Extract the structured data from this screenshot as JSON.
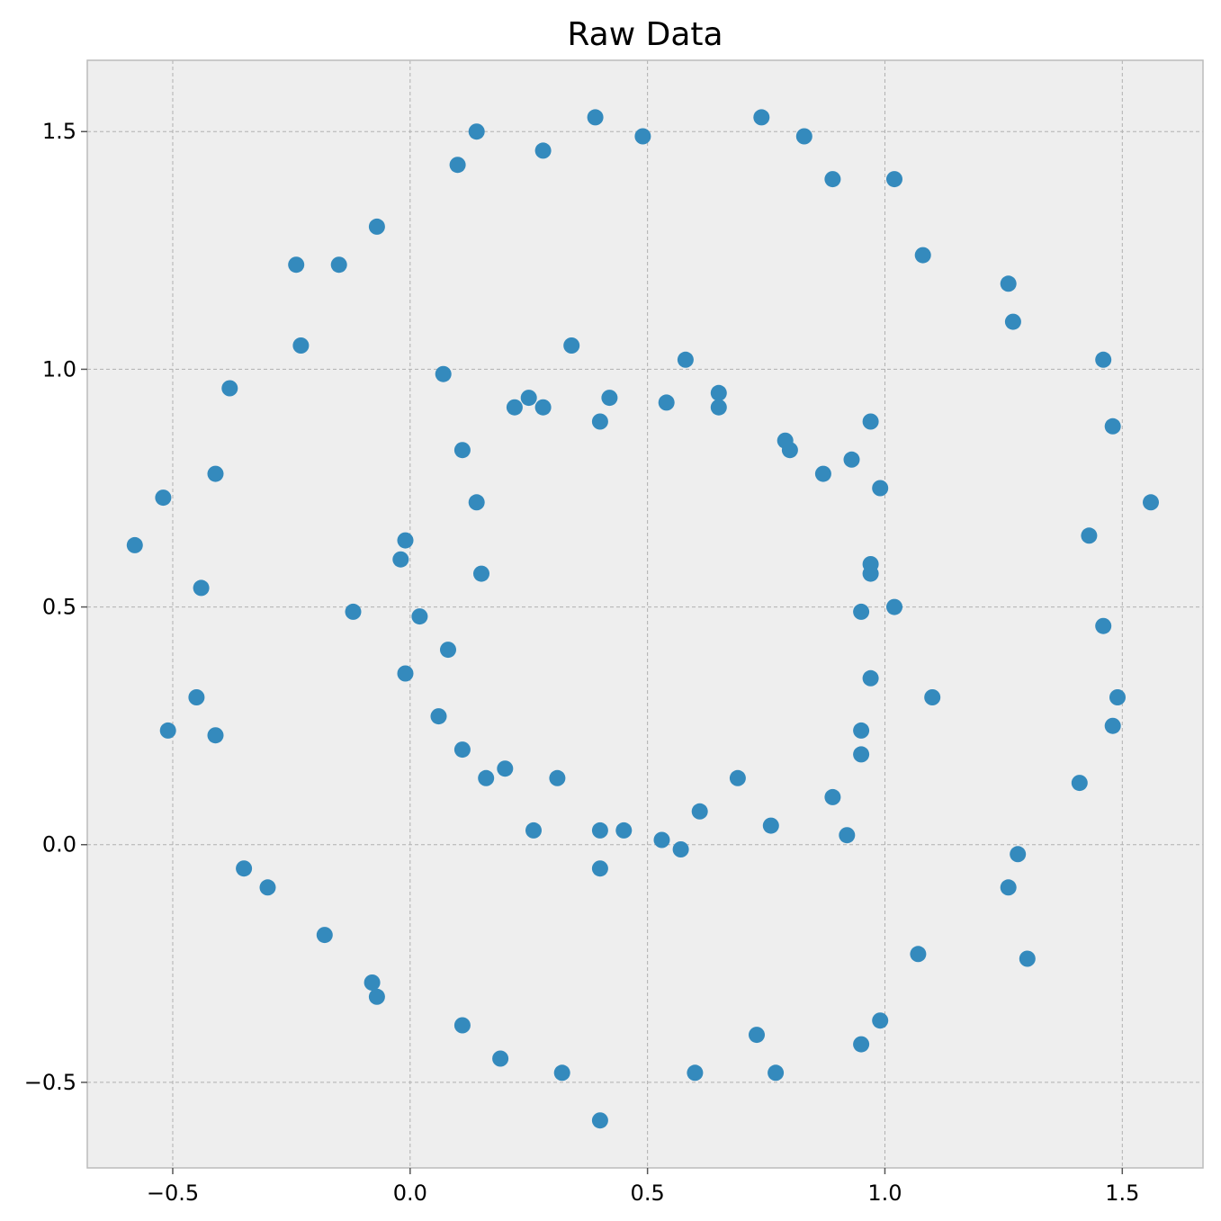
{
  "chart_data": {
    "type": "scatter",
    "title": "Raw Data",
    "xlabel": "",
    "ylabel": "",
    "xlim": [
      -0.68,
      1.67
    ],
    "ylim": [
      -0.68,
      1.65
    ],
    "xticks": [
      -0.5,
      0.0,
      0.5,
      1.0,
      1.5
    ],
    "yticks": [
      -0.5,
      0.0,
      0.5,
      1.0,
      1.5
    ],
    "xtick_labels": [
      "−0.5",
      "0.0",
      "0.5",
      "1.0",
      "1.5"
    ],
    "ytick_labels": [
      "−0.5",
      "0.0",
      "0.5",
      "1.0",
      "1.5"
    ],
    "grid": true,
    "colors": {
      "point": "#348abd",
      "plot_bg": "#eeeeee",
      "frame": "#bcbcbc"
    },
    "series": [
      {
        "points": [
          [
            0.39,
            1.53
          ],
          [
            0.74,
            1.53
          ],
          [
            0.14,
            1.5
          ],
          [
            0.83,
            1.49
          ],
          [
            0.49,
            1.49
          ],
          [
            0.28,
            1.46
          ],
          [
            0.1,
            1.43
          ],
          [
            0.89,
            1.4
          ],
          [
            1.02,
            1.4
          ],
          [
            -0.07,
            1.3
          ],
          [
            1.08,
            1.24
          ],
          [
            -0.24,
            1.22
          ],
          [
            -0.15,
            1.22
          ],
          [
            1.26,
            1.18
          ],
          [
            1.27,
            1.1
          ],
          [
            -0.23,
            1.05
          ],
          [
            1.46,
            1.02
          ],
          [
            -0.38,
            0.96
          ],
          [
            1.48,
            0.88
          ],
          [
            -0.41,
            0.78
          ],
          [
            -0.52,
            0.73
          ],
          [
            1.56,
            0.72
          ],
          [
            1.43,
            0.65
          ],
          [
            -0.58,
            0.63
          ],
          [
            -0.44,
            0.54
          ],
          [
            1.46,
            0.46
          ],
          [
            -0.45,
            0.31
          ],
          [
            1.49,
            0.31
          ],
          [
            1.48,
            0.25
          ],
          [
            -0.51,
            0.24
          ],
          [
            -0.41,
            0.23
          ],
          [
            1.41,
            0.13
          ],
          [
            1.28,
            -0.02
          ],
          [
            -0.35,
            -0.05
          ],
          [
            1.26,
            -0.09
          ],
          [
            -0.3,
            -0.09
          ],
          [
            -0.18,
            -0.19
          ],
          [
            1.07,
            -0.23
          ],
          [
            1.3,
            -0.24
          ],
          [
            -0.08,
            -0.29
          ],
          [
            -0.07,
            -0.32
          ],
          [
            0.11,
            -0.38
          ],
          [
            0.99,
            -0.37
          ],
          [
            0.73,
            -0.4
          ],
          [
            0.95,
            -0.42
          ],
          [
            0.19,
            -0.45
          ],
          [
            0.6,
            -0.48
          ],
          [
            0.77,
            -0.48
          ],
          [
            0.32,
            -0.48
          ],
          [
            0.4,
            -0.58
          ],
          [
            0.34,
            1.05
          ],
          [
            0.58,
            1.02
          ],
          [
            0.07,
            0.99
          ],
          [
            0.65,
            0.95
          ],
          [
            0.25,
            0.94
          ],
          [
            0.42,
            0.94
          ],
          [
            0.54,
            0.93
          ],
          [
            0.22,
            0.92
          ],
          [
            0.28,
            0.92
          ],
          [
            0.65,
            0.92
          ],
          [
            0.4,
            0.89
          ],
          [
            0.97,
            0.89
          ],
          [
            0.79,
            0.85
          ],
          [
            0.8,
            0.83
          ],
          [
            0.11,
            0.83
          ],
          [
            0.93,
            0.81
          ],
          [
            0.87,
            0.78
          ],
          [
            0.99,
            0.75
          ],
          [
            0.14,
            0.72
          ],
          [
            -0.01,
            0.64
          ],
          [
            -0.02,
            0.6
          ],
          [
            0.97,
            0.59
          ],
          [
            0.15,
            0.57
          ],
          [
            0.97,
            0.57
          ],
          [
            1.02,
            0.5
          ],
          [
            0.95,
            0.49
          ],
          [
            -0.12,
            0.49
          ],
          [
            0.02,
            0.48
          ],
          [
            0.08,
            0.41
          ],
          [
            -0.01,
            0.36
          ],
          [
            0.97,
            0.35
          ],
          [
            1.1,
            0.31
          ],
          [
            0.06,
            0.27
          ],
          [
            0.95,
            0.24
          ],
          [
            0.11,
            0.2
          ],
          [
            0.95,
            0.19
          ],
          [
            0.2,
            0.16
          ],
          [
            0.16,
            0.14
          ],
          [
            0.31,
            0.14
          ],
          [
            0.69,
            0.14
          ],
          [
            0.89,
            0.1
          ],
          [
            0.61,
            0.07
          ],
          [
            0.76,
            0.04
          ],
          [
            0.4,
            0.03
          ],
          [
            0.26,
            0.03
          ],
          [
            0.45,
            0.03
          ],
          [
            0.92,
            0.02
          ],
          [
            0.53,
            0.01
          ],
          [
            0.57,
            -0.01
          ],
          [
            0.4,
            -0.05
          ]
        ]
      }
    ]
  }
}
